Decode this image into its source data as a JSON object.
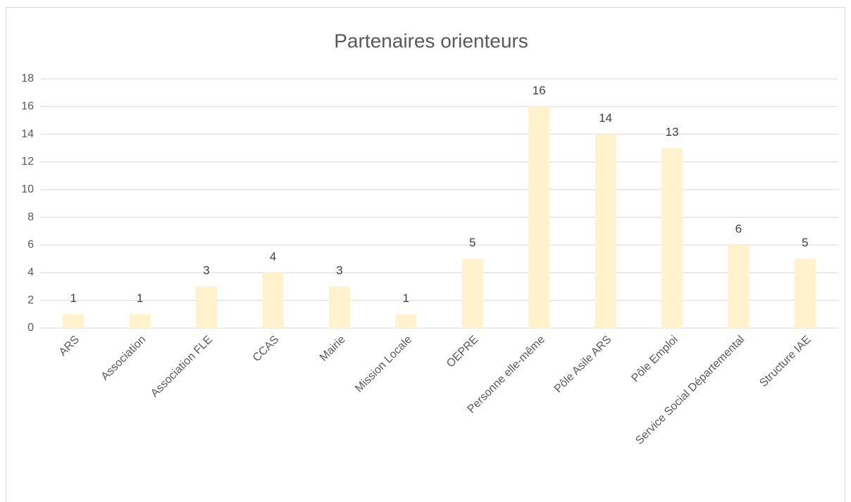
{
  "chart_data": {
    "type": "bar",
    "title": "Partenaires orienteurs",
    "categories": [
      "ARS",
      "Association",
      "Association FLE",
      "CCAS",
      "Mairie",
      "Mission Locale",
      "OEPRE",
      "Personne elle-même",
      "Pôle Asile ARS",
      "Pôle Emploi",
      "Service Social Départemental",
      "Structure IAE"
    ],
    "values": [
      1,
      1,
      3,
      4,
      3,
      1,
      5,
      16,
      14,
      13,
      6,
      5
    ],
    "color": "#fff2cc",
    "ylim": [
      0,
      18
    ],
    "yticks": [
      0,
      2,
      4,
      6,
      8,
      10,
      12,
      14,
      16,
      18
    ],
    "grid": true
  }
}
